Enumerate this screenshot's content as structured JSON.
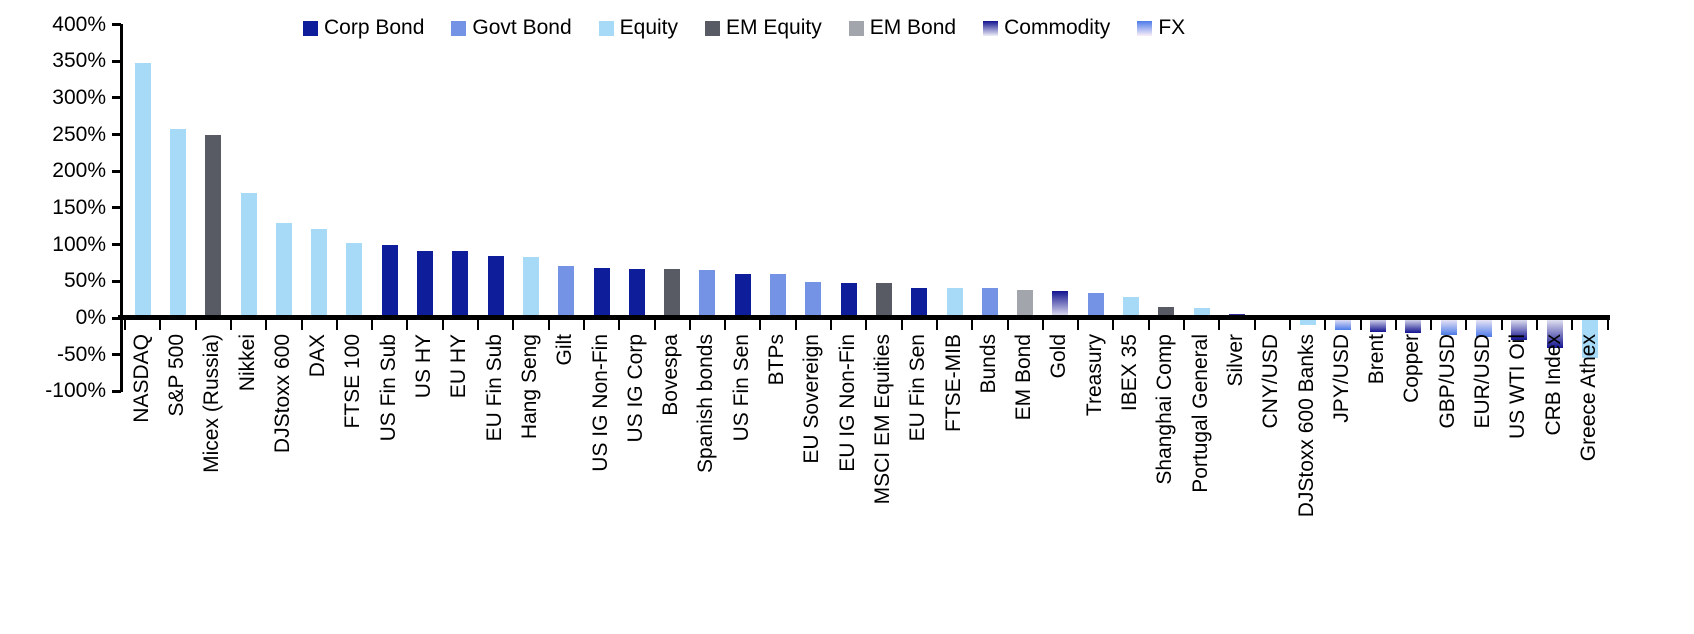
{
  "chart_data": {
    "type": "bar",
    "title": "",
    "xlabel": "",
    "ylabel": "",
    "ylim": [
      -100,
      400
    ],
    "ytick_step": 50,
    "yticks": [
      {
        "value": 400,
        "label": "400%"
      },
      {
        "value": 350,
        "label": "350%"
      },
      {
        "value": 300,
        "label": "300%"
      },
      {
        "value": 250,
        "label": "250%"
      },
      {
        "value": 200,
        "label": "200%"
      },
      {
        "value": 150,
        "label": "150%"
      },
      {
        "value": 100,
        "label": "100%"
      },
      {
        "value": 50,
        "label": "50%"
      },
      {
        "value": 0,
        "label": "0%"
      },
      {
        "value": -50,
        "label": "-50%"
      },
      {
        "value": -100,
        "label": "-100%"
      }
    ],
    "grid": false,
    "legend_position": "top",
    "legend": [
      "Corp Bond",
      "Govt Bond",
      "Equity",
      "EM Equity",
      "EM Bond",
      "Commodity",
      "FX"
    ],
    "points": [
      {
        "label": "NASDAQ",
        "series": "Equity",
        "value": 348
      },
      {
        "label": "S&P 500",
        "series": "Equity",
        "value": 257
      },
      {
        "label": "Micex (Russia)",
        "series": "EM Equity",
        "value": 250
      },
      {
        "label": "Nikkei",
        "series": "Equity",
        "value": 171
      },
      {
        "label": "DJStoxx 600",
        "series": "Equity",
        "value": 130
      },
      {
        "label": "DAX",
        "series": "Equity",
        "value": 121
      },
      {
        "label": "FTSE 100",
        "series": "Equity",
        "value": 102
      },
      {
        "label": "US Fin Sub",
        "series": "Corp Bond",
        "value": 100
      },
      {
        "label": "US HY",
        "series": "Corp Bond",
        "value": 92
      },
      {
        "label": "EU HY",
        "series": "Corp Bond",
        "value": 91
      },
      {
        "label": "EU Fin Sub",
        "series": "Corp Bond",
        "value": 84
      },
      {
        "label": "Hang Seng",
        "series": "Equity",
        "value": 83
      },
      {
        "label": "Gilt",
        "series": "Govt Bond",
        "value": 71
      },
      {
        "label": "US IG Non-Fin",
        "series": "Corp Bond",
        "value": 68
      },
      {
        "label": "US IG Corp",
        "series": "Corp Bond",
        "value": 67
      },
      {
        "label": "Bovespa",
        "series": "EM Equity",
        "value": 67
      },
      {
        "label": "Spanish bonds",
        "series": "Govt Bond",
        "value": 65
      },
      {
        "label": "US Fin Sen",
        "series": "Corp Bond",
        "value": 60
      },
      {
        "label": "BTPs",
        "series": "Govt Bond",
        "value": 60
      },
      {
        "label": "EU Sovereign",
        "series": "Govt Bond",
        "value": 49
      },
      {
        "label": "EU IG Non-Fin",
        "series": "Corp Bond",
        "value": 48
      },
      {
        "label": "MSCI EM Equities",
        "series": "EM Equity",
        "value": 48
      },
      {
        "label": "EU Fin Sen",
        "series": "Corp Bond",
        "value": 41
      },
      {
        "label": "FTSE-MIB",
        "series": "Equity",
        "value": 41
      },
      {
        "label": "Bunds",
        "series": "Govt Bond",
        "value": 41
      },
      {
        "label": "EM Bond",
        "series": "EM Bond",
        "value": 38
      },
      {
        "label": "Gold",
        "series": "Commodity",
        "value": 37
      },
      {
        "label": "Treasury",
        "series": "Govt Bond",
        "value": 34
      },
      {
        "label": "IBEX 35",
        "series": "Equity",
        "value": 29
      },
      {
        "label": "Shanghai Comp",
        "series": "EM Equity",
        "value": 15
      },
      {
        "label": "Portugal General",
        "series": "Equity",
        "value": 14
      },
      {
        "label": "Silver",
        "series": "Commodity",
        "value": 5
      },
      {
        "label": "CNY/USD",
        "series": "FX",
        "value": -1
      },
      {
        "label": "DJStoxx 600 Banks",
        "series": "Equity",
        "value": -10
      },
      {
        "label": "JPY/USD",
        "series": "FX",
        "value": -17
      },
      {
        "label": "Brent",
        "series": "Commodity",
        "value": -19
      },
      {
        "label": "Copper",
        "series": "Commodity",
        "value": -21
      },
      {
        "label": "GBP/USD",
        "series": "FX",
        "value": -23
      },
      {
        "label": "EUR/USD",
        "series": "FX",
        "value": -26
      },
      {
        "label": "US WTI Oil",
        "series": "Commodity",
        "value": -30
      },
      {
        "label": "CRB Index",
        "series": "Commodity",
        "value": -41
      },
      {
        "label": "Greece Athex",
        "series": "Equity",
        "value": -55
      }
    ]
  },
  "series_styles": {
    "Corp Bond": {
      "type": "solid",
      "color": "#0E1D99"
    },
    "Govt Bond": {
      "type": "solid",
      "color": "#7493E5"
    },
    "Equity": {
      "type": "solid",
      "color": "#A7DAF6"
    },
    "EM Equity": {
      "type": "solid",
      "color": "#585B63"
    },
    "EM Bond": {
      "type": "solid",
      "color": "#A3A5AC"
    },
    "Commodity": {
      "type": "gradient",
      "tip_color": "#12128F",
      "base_color": "#EFEFF9"
    },
    "FX": {
      "type": "gradient",
      "tip_color": "#4C7BE8",
      "base_color": "#FBEFF7"
    }
  },
  "colors": {
    "axis": "#000000",
    "text": "#000000",
    "background": "#ffffff"
  }
}
